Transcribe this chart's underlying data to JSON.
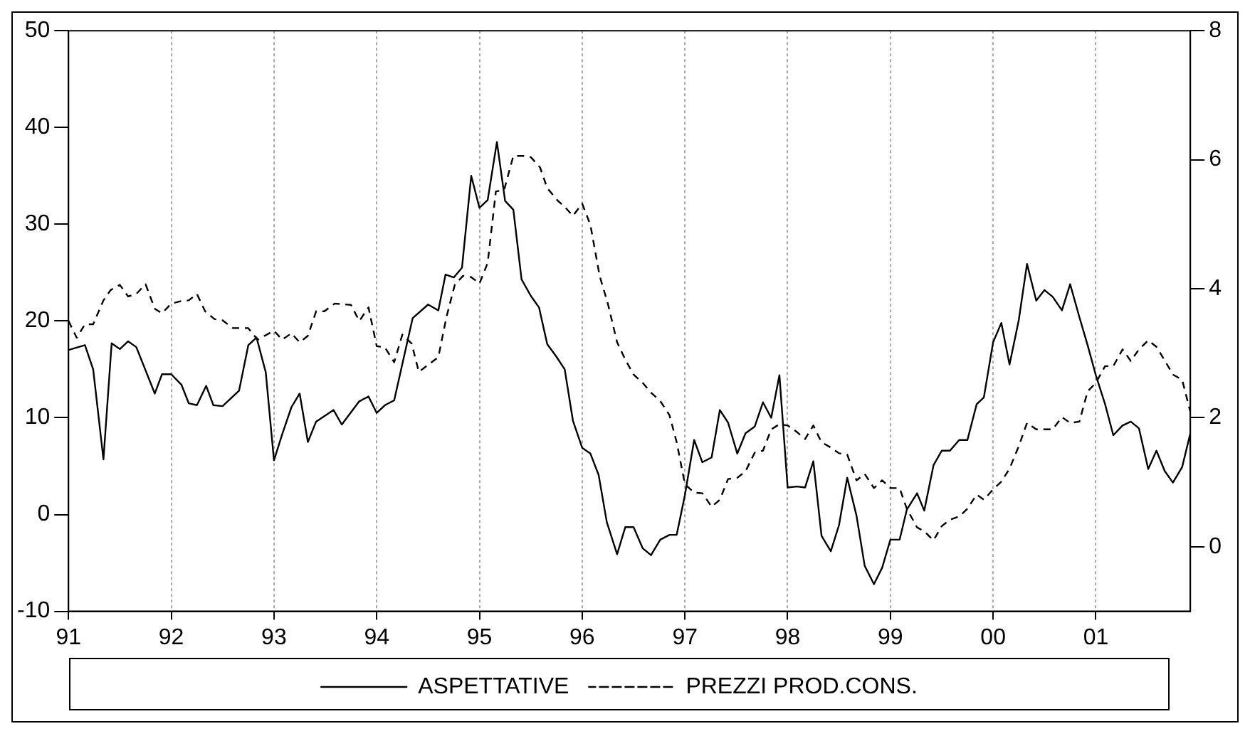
{
  "chart_data": {
    "type": "line",
    "x": [
      1991,
      1991.16,
      1991.24,
      1991.34,
      1991.42,
      1991.5,
      1991.58,
      1991.66,
      1991.84,
      1991.91,
      1992,
      1992.1,
      1992.17,
      1992.25,
      1992.34,
      1992.41,
      1992.5,
      1992.66,
      1992.75,
      1992.83,
      1992.92,
      1993,
      1993.08,
      1993.17,
      1993.25,
      1993.33,
      1993.41,
      1993.58,
      1993.66,
      1993.83,
      1993.92,
      1994,
      1994.08,
      1994.17,
      1994.35,
      1994.5,
      1994.6,
      1994.67,
      1994.75,
      1994.83,
      1994.92,
      1995,
      1995.08,
      1995.17,
      1995.25,
      1995.33,
      1995.41,
      1995.5,
      1995.58,
      1995.66,
      1995.75,
      1995.83,
      1995.91,
      1996,
      1996.08,
      1996.16,
      1996.24,
      1996.34,
      1996.42,
      1996.5,
      1996.59,
      1996.67,
      1996.76,
      1996.85,
      1996.92,
      1997,
      1997.09,
      1997.17,
      1997.26,
      1997.34,
      1997.42,
      1997.51,
      1997.59,
      1997.68,
      1997.76,
      1997.84,
      1997.92,
      1998,
      1998.09,
      1998.17,
      1998.25,
      1998.33,
      1998.42,
      1998.5,
      1998.58,
      1998.67,
      1998.75,
      1998.84,
      1998.92,
      1999,
      1999.09,
      1999.16,
      1999.26,
      1999.33,
      1999.42,
      1999.5,
      1999.58,
      1999.67,
      1999.75,
      1999.84,
      1999.91,
      2000,
      2000.08,
      2000.16,
      2000.25,
      2000.33,
      2000.42,
      2000.5,
      2000.58,
      2000.67,
      2000.75,
      2000.84,
      2000.92,
      2001,
      2001.09,
      2001.17,
      2001.26,
      2001.34,
      2001.42,
      2001.51,
      2001.59,
      2001.67,
      2001.75,
      2001.84,
      2001.92
    ],
    "xlim": [
      1991,
      2001.92
    ],
    "xticks": [
      {
        "value": 1991,
        "label": "91"
      },
      {
        "value": 1992,
        "label": "92"
      },
      {
        "value": 1993,
        "label": "93"
      },
      {
        "value": 1994,
        "label": "94"
      },
      {
        "value": 1995,
        "label": "95"
      },
      {
        "value": 1996,
        "label": "96"
      },
      {
        "value": 1997,
        "label": "97"
      },
      {
        "value": 1998,
        "label": "98"
      },
      {
        "value": 1999,
        "label": "99"
      },
      {
        "value": 2000,
        "label": "00"
      },
      {
        "value": 2001,
        "label": "01"
      }
    ],
    "ylim": [
      -10,
      50
    ],
    "yticks": [
      -10,
      0,
      10,
      20,
      30,
      40,
      50
    ],
    "y2lim": [
      -1,
      8
    ],
    "y2ticks": [
      0,
      2,
      4,
      6,
      8
    ],
    "grid": "x",
    "legend": "bottom",
    "series": [
      {
        "name": "ASPETTATIVE",
        "color": "#000000",
        "line_style": "solid",
        "values": [
          17.0,
          17.5,
          15.0,
          5.7,
          17.7,
          17.1,
          17.9,
          17.3,
          12.5,
          14.5,
          14.5,
          13.4,
          11.5,
          11.3,
          13.3,
          11.3,
          11.2,
          12.8,
          17.5,
          18.3,
          14.7,
          5.6,
          8.3,
          11.1,
          12.5,
          7.5,
          9.6,
          10.8,
          9.3,
          11.7,
          12.2,
          10.5,
          11.3,
          11.8,
          20.3,
          21.7,
          21.1,
          24.8,
          24.5,
          25.5,
          35.0,
          31.7,
          32.5,
          38.5,
          32.4,
          31.5,
          24.3,
          22.6,
          21.4,
          17.6,
          16.3,
          15.0,
          9.7,
          6.9,
          6.3,
          4.1,
          -0.8,
          -4.1,
          -1.3,
          -1.3,
          -3.5,
          -4.2,
          -2.6,
          -2.1,
          -2.1,
          2.0,
          7.7,
          5.4,
          5.9,
          10.8,
          9.5,
          6.3,
          8.4,
          9.1,
          11.6,
          10.0,
          14.4,
          2.8,
          2.9,
          2.8,
          5.5,
          -2.2,
          -3.8,
          -1.1,
          3.8,
          -0.1,
          -5.3,
          -7.2,
          -5.5,
          -2.6,
          -2.6,
          0.5,
          2.2,
          0.4,
          5.1,
          6.6,
          6.6,
          7.7,
          7.7,
          11.4,
          12.1,
          17.8,
          19.8,
          15.5,
          20.1,
          25.9,
          22.1,
          23.2,
          22.5,
          21.1,
          23.8,
          20.4,
          17.5,
          14.4,
          11.4,
          8.2,
          9.2,
          9.6,
          8.9,
          4.7,
          6.6,
          4.5,
          3.3,
          4.9,
          8.4
        ]
      },
      {
        "name": "PREZZI PROD.CONS.",
        "color": "#000000",
        "line_style": "dashed",
        "axis": "y2",
        "x": [
          1991,
          1991.08,
          1991.16,
          1991.24,
          1991.34,
          1991.41,
          1991.5,
          1991.58,
          1991.66,
          1991.75,
          1991.84,
          1991.91,
          1992,
          1992.1,
          1992.17,
          1992.25,
          1992.33,
          1992.42,
          1992.5,
          1992.6,
          1992.75,
          1992.84,
          1993,
          1993.08,
          1993.17,
          1993.25,
          1993.33,
          1993.41,
          1993.49,
          1993.59,
          1993.75,
          1993.83,
          1993.92,
          1994,
          1994.08,
          1994.17,
          1994.25,
          1994.34,
          1994.41,
          1994.5,
          1994.6,
          1994.68,
          1994.76,
          1994.84,
          1994.92,
          1995,
          1995.08,
          1995.16,
          1995.24,
          1995.33,
          1995.42,
          1995.5,
          1995.59,
          1995.66,
          1995.76,
          1995.83,
          1995.91,
          1996,
          1996.08,
          1996.17,
          1996.25,
          1996.34,
          1996.42,
          1996.5,
          1996.59,
          1996.67,
          1996.76,
          1996.85,
          1996.92,
          1997,
          1997.09,
          1997.17,
          1997.26,
          1997.34,
          1997.42,
          1997.51,
          1997.59,
          1997.68,
          1997.76,
          1997.84,
          1997.92,
          1998,
          1998.09,
          1998.17,
          1998.25,
          1998.33,
          1998.42,
          1998.5,
          1998.58,
          1998.67,
          1998.75,
          1998.84,
          1998.92,
          1999,
          1999.09,
          1999.16,
          1999.26,
          1999.33,
          1999.42,
          1999.5,
          1999.58,
          1999.67,
          1999.75,
          1999.84,
          1999.91,
          2000,
          2000.08,
          2000.16,
          2000.25,
          2000.33,
          2000.42,
          2000.5,
          2000.58,
          2000.67,
          2000.75,
          2000.84,
          2000.92,
          2001,
          2001.09,
          2001.17,
          2001.26,
          2001.34,
          2001.42,
          2001.51,
          2001.59,
          2001.67,
          2001.75,
          2001.84,
          2001.92
        ],
        "values": [
          3.5,
          3.24,
          3.45,
          3.45,
          3.82,
          3.98,
          4.06,
          3.88,
          3.92,
          4.07,
          3.69,
          3.62,
          3.77,
          3.81,
          3.82,
          3.92,
          3.65,
          3.53,
          3.51,
          3.39,
          3.39,
          3.21,
          3.35,
          3.21,
          3.31,
          3.17,
          3.27,
          3.65,
          3.65,
          3.77,
          3.75,
          3.5,
          3.71,
          3.11,
          3.09,
          2.86,
          3.29,
          3.15,
          2.71,
          2.82,
          2.94,
          3.57,
          4.06,
          4.2,
          4.18,
          4.08,
          4.4,
          5.51,
          5.53,
          6.06,
          6.06,
          6.04,
          5.88,
          5.56,
          5.37,
          5.27,
          5.13,
          5.32,
          4.99,
          4.2,
          3.77,
          3.17,
          2.9,
          2.67,
          2.54,
          2.39,
          2.26,
          2.04,
          1.62,
          0.97,
          0.84,
          0.83,
          0.62,
          0.73,
          1.05,
          1.07,
          1.17,
          1.46,
          1.49,
          1.82,
          1.9,
          1.88,
          1.78,
          1.67,
          1.88,
          1.62,
          1.54,
          1.45,
          1.43,
          1.03,
          1.13,
          0.91,
          1.03,
          0.91,
          0.91,
          0.59,
          0.3,
          0.24,
          0.1,
          0.32,
          0.42,
          0.47,
          0.59,
          0.81,
          0.73,
          0.89,
          1.01,
          1.21,
          1.56,
          1.92,
          1.82,
          1.82,
          1.82,
          2.01,
          1.92,
          1.94,
          2.41,
          2.54,
          2.8,
          2.8,
          3.06,
          2.88,
          3.06,
          3.2,
          3.1,
          2.89,
          2.67,
          2.59,
          2.09
        ]
      }
    ]
  }
}
